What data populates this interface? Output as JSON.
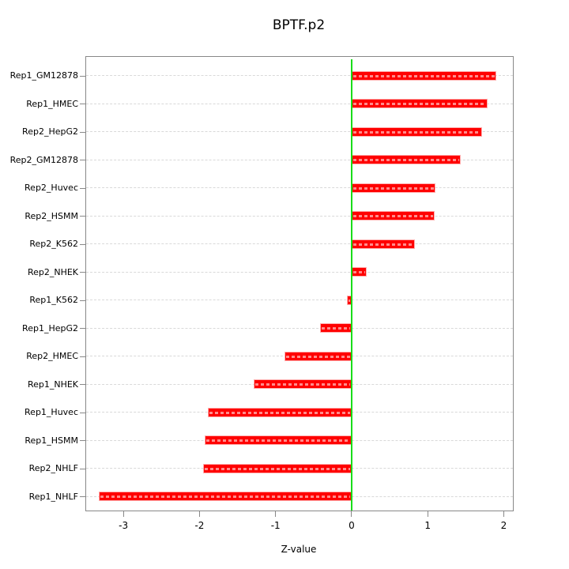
{
  "title": "BPTF.p2",
  "chart_data": {
    "type": "bar",
    "orientation": "horizontal",
    "title": "BPTF.p2",
    "xlabel": "Z-value",
    "ylabel": "",
    "xlim": [
      -3.49,
      2.12
    ],
    "x_ticks": [
      -3,
      -2,
      -1,
      0,
      1,
      2
    ],
    "x_tick_labels": [
      "-3",
      "-2",
      "-1",
      "0",
      "1",
      "2"
    ],
    "reference_line_x": 0,
    "grid": "horizontal-dashed-per-category",
    "legend": "none",
    "categories": [
      "Rep1_GM12878",
      "Rep1_HMEC",
      "Rep2_HepG2",
      "Rep2_GM12878",
      "Rep2_Huvec",
      "Rep2_HSMM",
      "Rep2_K562",
      "Rep2_NHEK",
      "Rep1_K562",
      "Rep1_HepG2",
      "Rep2_HMEC",
      "Rep1_NHEK",
      "Rep1_Huvec",
      "Rep1_HSMM",
      "Rep2_NHLF",
      "Rep1_NHLF"
    ],
    "values": [
      1.9,
      1.79,
      1.71,
      1.43,
      1.1,
      1.09,
      0.83,
      0.2,
      -0.06,
      -0.42,
      -0.88,
      -1.29,
      -1.89,
      -1.93,
      -1.95,
      -3.32
    ],
    "colors": {
      "bar": "#ff0000",
      "bar_edge": "#ffb0b0",
      "zero_line": "#19dd19",
      "gridline": "#d9d9d9",
      "frame": "#888888",
      "text": "#000000",
      "background": "#ffffff"
    }
  }
}
